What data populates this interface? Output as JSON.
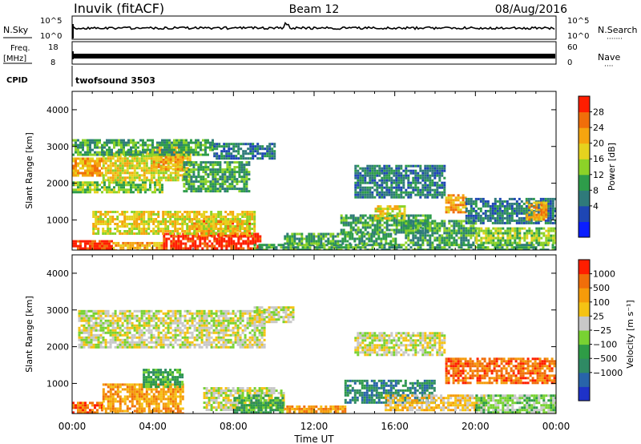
{
  "header": {
    "station": "Inuvik (fitACF)",
    "beam": "Beam 12",
    "date": "08/Aug/2016"
  },
  "strips": {
    "nsky_label": "N.Sky",
    "nsearch_label": "N.Search",
    "nsearch_dots": "·······",
    "freq_label": "Freq.",
    "freq_unit": "[MHz]",
    "nave_label": "Nave",
    "nave_dots": "····",
    "cpid_label": "CPID",
    "cpid_value": "twofsound 3503",
    "nsky_ticks": [
      "10^5",
      "10^0"
    ],
    "nsearch_ticks": [
      "10^5",
      "10^0"
    ],
    "freq_ticks": [
      "18",
      "8"
    ],
    "nave_ticks": [
      "60",
      "0"
    ]
  },
  "chart_data": [
    {
      "type": "heatmap",
      "name": "power",
      "xlabel": "",
      "ylabel": "Slant Range [km]",
      "xlim_hours": [
        0,
        24
      ],
      "ylim_km": [
        180,
        4500
      ],
      "yticks": [
        1000,
        2000,
        3000,
        4000
      ],
      "colorbar_label": "Power [dB]",
      "colorbar_ticks": [
        "28",
        "24",
        "20",
        "16",
        "12",
        "8",
        "4"
      ],
      "colorbar_colors": [
        "#0a1eff",
        "#1e46b4",
        "#2f7a7a",
        "#2e9c4a",
        "#8cd228",
        "#e6d21e",
        "#f5a50f",
        "#f06e0a",
        "#ff1e00"
      ],
      "regions": [
        {
          "t0": 0.0,
          "t1": 2.0,
          "r0": 200,
          "r1": 450,
          "level": 8
        },
        {
          "t0": 4.5,
          "t1": 9.3,
          "r0": 200,
          "r1": 650,
          "level": 8
        },
        {
          "t0": 6.0,
          "t1": 8.8,
          "r0": 550,
          "r1": 1000,
          "level": 7
        },
        {
          "t0": 2.0,
          "t1": 4.5,
          "r0": 200,
          "r1": 400,
          "level": 6
        },
        {
          "t0": 1.0,
          "t1": 9.0,
          "r0": 650,
          "r1": 1250,
          "level": 5
        },
        {
          "t0": 0.0,
          "t1": 1.5,
          "r0": 2200,
          "r1": 2700,
          "level": 6
        },
        {
          "t0": 1.5,
          "t1": 5.8,
          "r0": 2050,
          "r1": 2900,
          "level": 5
        },
        {
          "t0": 4.0,
          "t1": 5.5,
          "r0": 2400,
          "r1": 3000,
          "level": 6
        },
        {
          "t0": 0.0,
          "t1": 4.5,
          "r0": 1750,
          "r1": 2050,
          "level": 4
        },
        {
          "t0": 0.0,
          "t1": 7.0,
          "r0": 2750,
          "r1": 3200,
          "level": 3
        },
        {
          "t0": 5.5,
          "t1": 8.8,
          "r0": 1800,
          "r1": 2600,
          "level": 3
        },
        {
          "t0": 7.0,
          "t1": 10.0,
          "r0": 2700,
          "r1": 3100,
          "level": 2
        },
        {
          "t0": 9.0,
          "t1": 24.0,
          "r0": 200,
          "r1": 350,
          "level": 3
        },
        {
          "t0": 10.5,
          "t1": 16.0,
          "r0": 350,
          "r1": 650,
          "level": 3
        },
        {
          "t0": 13.3,
          "t1": 17.8,
          "r0": 650,
          "r1": 1150,
          "level": 3
        },
        {
          "t0": 14.0,
          "t1": 18.5,
          "r0": 1600,
          "r1": 2500,
          "level": 2
        },
        {
          "t0": 15.0,
          "t1": 16.5,
          "r0": 1050,
          "r1": 1400,
          "level": 5
        },
        {
          "t0": 16.5,
          "t1": 20.0,
          "r0": 400,
          "r1": 1000,
          "level": 3
        },
        {
          "t0": 18.5,
          "t1": 19.5,
          "r0": 1200,
          "r1": 1700,
          "level": 6
        },
        {
          "t0": 19.5,
          "t1": 24.0,
          "r0": 900,
          "r1": 1600,
          "level": 2
        },
        {
          "t0": 20.0,
          "t1": 24.0,
          "r0": 350,
          "r1": 800,
          "level": 4
        },
        {
          "t0": 22.5,
          "t1": 23.5,
          "r0": 1000,
          "r1": 1500,
          "level": 6
        }
      ]
    },
    {
      "type": "heatmap",
      "name": "velocity",
      "xlabel": "Time UT",
      "ylabel": "Slant Range [km]",
      "xlim_hours": [
        0,
        24
      ],
      "ylim_km": [
        180,
        4500
      ],
      "xticks": [
        "00:00",
        "04:00",
        "08:00",
        "12:00",
        "16:00",
        "20:00",
        "00:00"
      ],
      "yticks": [
        1000,
        2000,
        3000,
        4000
      ],
      "colorbar_label": "Velocity [m s⁻¹]",
      "colorbar_ticks": [
        "1000",
        "500",
        "100",
        "25",
        "−25",
        "−100",
        "−500",
        "−1000"
      ],
      "colorbar_colors": [
        "#1e32c8",
        "#2864aa",
        "#2f8a64",
        "#2e9c46",
        "#78d232",
        "#c8c8c8",
        "#f5c314",
        "#f59b0a",
        "#f06e0a",
        "#ff1e00"
      ],
      "regions": [
        {
          "t0": 0.3,
          "t1": 9.5,
          "r0": 2000,
          "r1": 3000,
          "level": 5
        },
        {
          "t0": 6.5,
          "t1": 10.5,
          "r0": 300,
          "r1": 900,
          "level": 5
        },
        {
          "t0": 9.0,
          "t1": 11.0,
          "r0": 2700,
          "r1": 3100,
          "level": 5
        },
        {
          "t0": 14.0,
          "t1": 18.5,
          "r0": 1800,
          "r1": 2400,
          "level": 5
        },
        {
          "t0": 0.0,
          "t1": 1.5,
          "r0": 200,
          "r1": 500,
          "level": 8
        },
        {
          "t0": 1.5,
          "t1": 5.5,
          "r0": 200,
          "r1": 1000,
          "level": 7
        },
        {
          "t0": 3.5,
          "t1": 5.5,
          "r0": 900,
          "r1": 1400,
          "level": 3
        },
        {
          "t0": 8.0,
          "t1": 10.5,
          "r0": 200,
          "r1": 700,
          "level": 3
        },
        {
          "t0": 10.5,
          "t1": 13.5,
          "r0": 200,
          "r1": 400,
          "level": 7
        },
        {
          "t0": 13.5,
          "t1": 18.0,
          "r0": 500,
          "r1": 1100,
          "level": 2
        },
        {
          "t0": 15.5,
          "t1": 20.5,
          "r0": 300,
          "r1": 700,
          "level": 6
        },
        {
          "t0": 18.5,
          "t1": 24.0,
          "r0": 1000,
          "r1": 1700,
          "level": 8
        },
        {
          "t0": 20.0,
          "t1": 24.0,
          "r0": 200,
          "r1": 700,
          "level": 4
        }
      ]
    }
  ]
}
